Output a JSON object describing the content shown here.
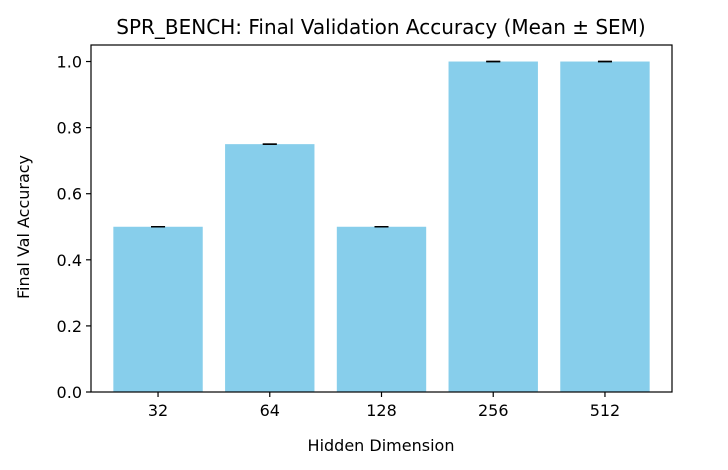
{
  "chart_data": {
    "type": "bar",
    "title": "SPR_BENCH: Final Validation Accuracy (Mean ± SEM)",
    "xlabel": "Hidden Dimension",
    "ylabel": "Final Val Accuracy",
    "categories": [
      "32",
      "64",
      "128",
      "256",
      "512"
    ],
    "values": [
      0.5,
      0.75,
      0.5,
      1.0,
      1.0
    ],
    "errors": [
      0.0,
      0.0,
      0.0,
      0.0,
      0.0
    ],
    "ylim": [
      0,
      1.05
    ],
    "yticks": [
      0.0,
      0.2,
      0.4,
      0.6,
      0.8,
      1.0
    ],
    "ytick_labels": [
      "0.0",
      "0.2",
      "0.4",
      "0.6",
      "0.8",
      "1.0"
    ],
    "grid": false,
    "bar_color": "#87ceeb",
    "error_color": "#000000"
  }
}
